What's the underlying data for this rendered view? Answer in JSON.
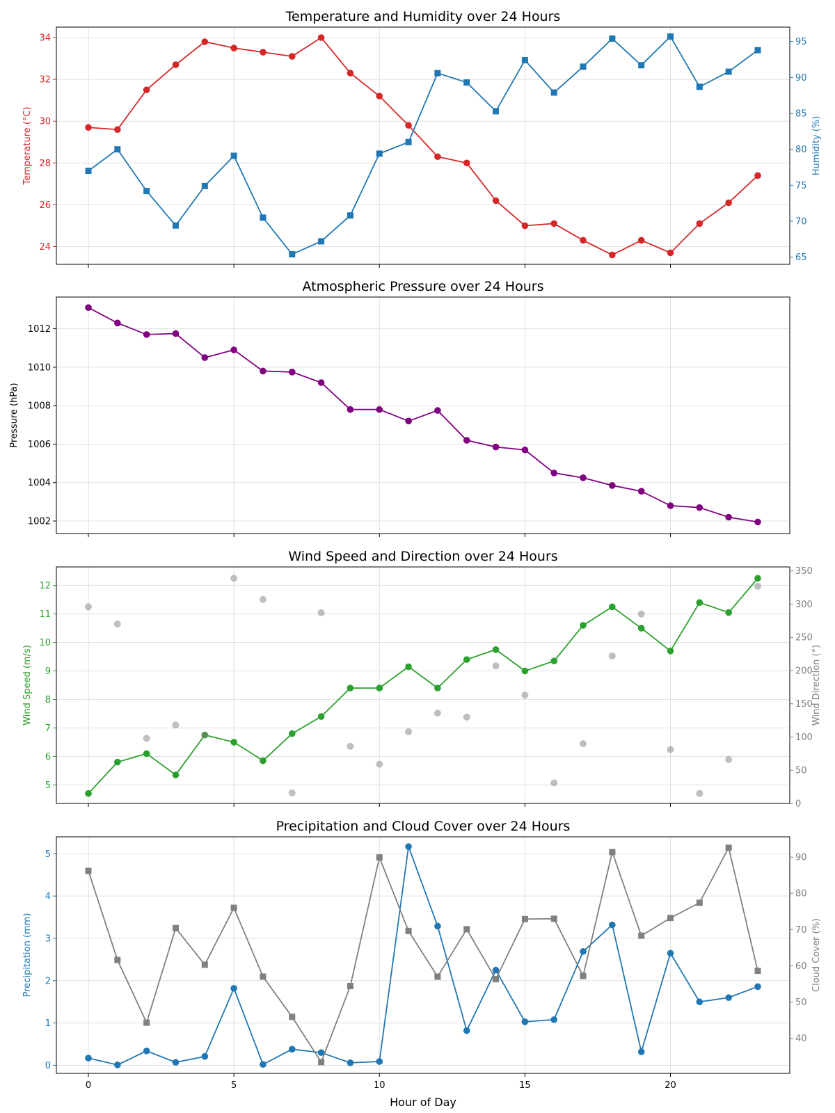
{
  "figure": {
    "xlabel": "Hour of Day"
  },
  "chart_data": [
    {
      "type": "line",
      "title": "Temperature and Humidity over 24 Hours",
      "x": [
        0,
        1,
        2,
        3,
        4,
        5,
        6,
        7,
        8,
        9,
        10,
        11,
        12,
        13,
        14,
        15,
        16,
        17,
        18,
        19,
        20,
        21,
        22,
        23
      ],
      "xlim": [
        -1.1,
        24.1
      ],
      "xticks": [
        0,
        5,
        10,
        15,
        20
      ],
      "xlabel": "",
      "left": {
        "label": "Temperature (°C)",
        "color": "#d62728",
        "ylim": [
          23.15,
          34.5
        ],
        "ticks": [
          24,
          26,
          28,
          30,
          32,
          34
        ]
      },
      "right": {
        "label": "Humidity (%)",
        "color": "#1f77b4",
        "ylim": [
          64.0,
          97.0
        ],
        "ticks": [
          65,
          70,
          75,
          80,
          85,
          90,
          95
        ]
      },
      "series": [
        {
          "name": "Temperature (°C)",
          "axis": "left",
          "color": "#d62728",
          "marker": "circle",
          "values": [
            29.7,
            29.6,
            31.5,
            32.7,
            33.8,
            33.5,
            33.3,
            33.1,
            34.0,
            32.3,
            31.2,
            29.8,
            28.3,
            28.0,
            26.2,
            25.0,
            25.1,
            24.3,
            23.6,
            24.3,
            23.7,
            25.1,
            26.1,
            27.4
          ]
        },
        {
          "name": "Humidity (%)",
          "axis": "right",
          "color": "#1f77b4",
          "marker": "square",
          "values": [
            77.0,
            80.0,
            74.2,
            69.4,
            74.9,
            79.1,
            70.5,
            65.4,
            67.2,
            70.8,
            79.4,
            81.0,
            90.6,
            89.3,
            85.3,
            92.4,
            87.9,
            91.5,
            95.4,
            91.7,
            95.7,
            88.7,
            90.8,
            93.8
          ]
        }
      ],
      "grid": true
    },
    {
      "type": "line",
      "title": "Atmospheric Pressure over 24 Hours",
      "x": [
        0,
        1,
        2,
        3,
        4,
        5,
        6,
        7,
        8,
        9,
        10,
        11,
        12,
        13,
        14,
        15,
        16,
        17,
        18,
        19,
        20,
        21,
        22,
        23
      ],
      "xlim": [
        -1.1,
        24.1
      ],
      "xticks": [
        0,
        5,
        10,
        15,
        20
      ],
      "xlabel": "",
      "left": {
        "label": "Pressure (hPa)",
        "color": "#000000",
        "ylim": [
          1001.35,
          1013.65
        ],
        "ticks": [
          1002,
          1004,
          1006,
          1008,
          1010,
          1012
        ]
      },
      "series": [
        {
          "name": "Pressure (hPa)",
          "axis": "left",
          "color": "#800080",
          "marker": "circle",
          "values": [
            1013.1,
            1012.3,
            1011.7,
            1011.75,
            1010.5,
            1010.9,
            1009.8,
            1009.75,
            1009.2,
            1007.8,
            1007.8,
            1007.2,
            1007.75,
            1006.2,
            1005.85,
            1005.7,
            1004.5,
            1004.25,
            1003.85,
            1003.55,
            1002.8,
            1002.7,
            1002.2,
            1001.95
          ]
        }
      ],
      "grid": true
    },
    {
      "type": "line",
      "title": "Wind Speed and Direction over 24 Hours",
      "x": [
        0,
        1,
        2,
        3,
        4,
        5,
        6,
        7,
        8,
        9,
        10,
        11,
        12,
        13,
        14,
        15,
        16,
        17,
        18,
        19,
        20,
        21,
        22,
        23
      ],
      "xlim": [
        -1.1,
        24.1
      ],
      "xticks": [
        0,
        5,
        10,
        15,
        20
      ],
      "xlabel": "",
      "left": {
        "label": "Wind Speed (m/s)",
        "color": "#2ca02c",
        "ylim": [
          4.35,
          12.65
        ],
        "ticks": [
          5,
          6,
          7,
          8,
          9,
          10,
          11,
          12
        ]
      },
      "right": {
        "label": "Wind Direction (°)",
        "color": "#808080",
        "ylim": [
          0,
          356
        ],
        "ticks": [
          0,
          50,
          100,
          150,
          200,
          250,
          300,
          350
        ]
      },
      "series": [
        {
          "name": "Wind Speed (m/s)",
          "axis": "left",
          "color": "#2ca02c",
          "marker": "circle",
          "values": [
            4.7,
            5.8,
            6.1,
            5.35,
            6.75,
            6.5,
            5.85,
            6.8,
            7.4,
            8.4,
            8.4,
            9.15,
            8.4,
            9.4,
            9.75,
            9.0,
            9.35,
            10.6,
            11.25,
            10.5,
            9.7,
            11.4,
            11.05,
            12.25
          ]
        },
        {
          "name": "Wind Direction (°)",
          "axis": "right",
          "color": "#808080",
          "marker": "circle",
          "style": "scatter",
          "values": [
            296,
            270,
            98,
            118,
            103,
            339,
            307,
            16,
            287,
            86,
            59,
            108,
            136,
            130,
            207,
            163,
            31,
            90,
            222,
            285,
            81,
            15,
            66,
            327
          ]
        }
      ],
      "grid": true
    },
    {
      "type": "line",
      "title": "Precipitation and Cloud Cover over 24 Hours",
      "x": [
        0,
        1,
        2,
        3,
        4,
        5,
        6,
        7,
        8,
        9,
        10,
        11,
        12,
        13,
        14,
        15,
        16,
        17,
        18,
        19,
        20,
        21,
        22,
        23
      ],
      "xlim": [
        -1.1,
        24.1
      ],
      "xticks": [
        0,
        5,
        10,
        15,
        20
      ],
      "xlabel": "Hour of Day",
      "left": {
        "label": "Precipitation (mm)",
        "color": "#1f77b4",
        "ylim": [
          -0.19,
          5.4
        ],
        "ticks": [
          0,
          1,
          2,
          3,
          4,
          5
        ]
      },
      "right": {
        "label": "Cloud Cover (%)",
        "color": "#808080",
        "ylim": [
          30.3,
          95.6
        ],
        "ticks": [
          40,
          50,
          60,
          70,
          80,
          90
        ]
      },
      "series": [
        {
          "name": "Precipitation (mm)",
          "axis": "left",
          "color": "#1f77b4",
          "marker": "circle",
          "values": [
            0.17,
            0.01,
            0.34,
            0.07,
            0.21,
            1.82,
            0.02,
            0.38,
            0.3,
            0.06,
            0.09,
            5.17,
            3.29,
            0.82,
            2.25,
            1.03,
            1.08,
            2.69,
            3.32,
            0.32,
            2.65,
            1.5,
            1.6,
            1.86
          ]
        },
        {
          "name": "Cloud Cover (%)",
          "axis": "right",
          "color": "#808080",
          "marker": "square",
          "values": [
            86.2,
            61.6,
            44.3,
            70.4,
            60.3,
            76.0,
            57.0,
            45.9,
            33.4,
            54.4,
            89.9,
            69.6,
            57.0,
            70.1,
            56.3,
            72.9,
            73.0,
            57.2,
            91.4,
            68.3,
            73.2,
            77.4,
            92.6,
            58.6
          ]
        }
      ],
      "grid": true
    }
  ]
}
